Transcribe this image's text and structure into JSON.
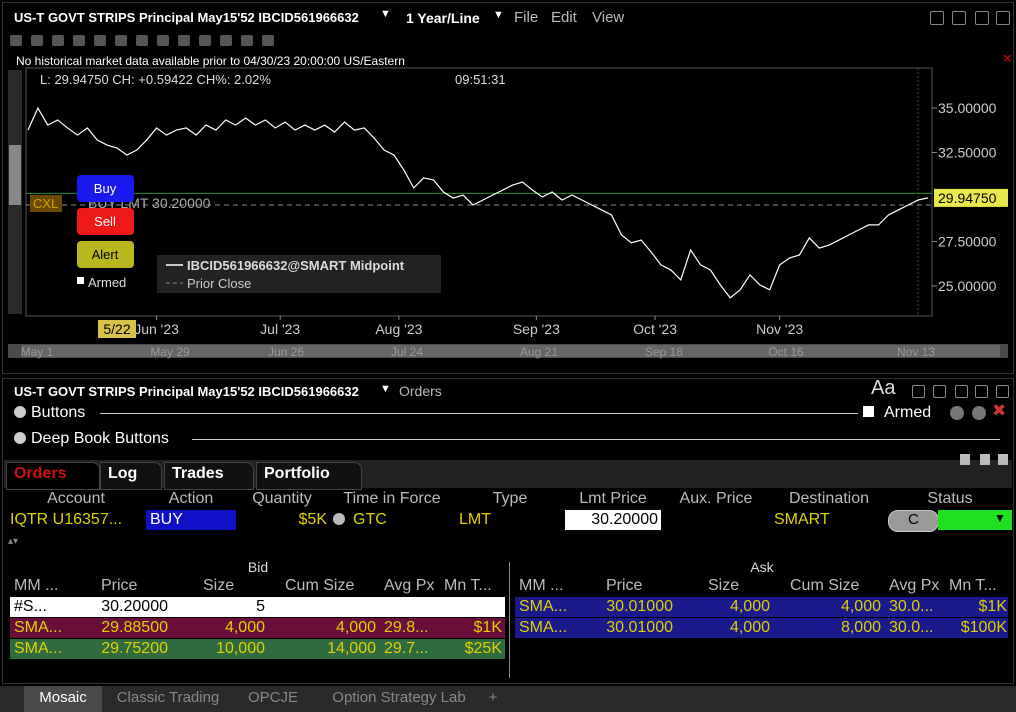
{
  "chart_window": {
    "title": "US-T GOVT STRIPS Principal May15'52 IBCID561966632",
    "period": "1 Year/Line",
    "menu": [
      "File",
      "Edit",
      "View"
    ],
    "notice": "No historical market data available prior to 04/30/23 20:00:00 US/Eastern",
    "info": "L: 29.94750 CH: +0.59422 CH%: 2.02%",
    "time": "09:51:31",
    "buttons": [
      "Buy",
      "Sell",
      "Alert"
    ],
    "armed": "Armed",
    "cxl": "CXL",
    "navigator": [
      "May 1",
      "May 29",
      "Jun 26",
      "Jul 24",
      "Aug 21",
      "Sep 18",
      "Oct 16",
      "Nov 13"
    ]
  },
  "chart_data": {
    "type": "line",
    "series": [
      {
        "name": "IBCID561966632@SMART Midpoint",
        "color": "#ffffff",
        "values": [
          33.76,
          35.0,
          34.04,
          34.33,
          33.88,
          33.48,
          33.88,
          33.2,
          32.92,
          32.75,
          32.36,
          32.64,
          33.2,
          33.88,
          33.48,
          33.76,
          33.88,
          33.48,
          34.04,
          33.76,
          34.33,
          34.04,
          34.44,
          34.04,
          34.33,
          33.88,
          34.21,
          33.76,
          34.04,
          33.76,
          34.04,
          33.65,
          34.21,
          33.76,
          33.88,
          33.31,
          32.64,
          32.36,
          31.52,
          30.51,
          31.07,
          30.96,
          30.28,
          29.94,
          30.11,
          29.55,
          29.83,
          30.11,
          30.39,
          30.67,
          30.84,
          30.39,
          30.0,
          30.28,
          29.83,
          30.11,
          29.83,
          29.55,
          29.27,
          28.99,
          27.87,
          27.42,
          27.58,
          26.91,
          26.18,
          25.9,
          25.34,
          27.02,
          26.18,
          25.9,
          25.06,
          24.33,
          24.78,
          25.62,
          25.06,
          24.78,
          26.18,
          26.57,
          26.74,
          27.7,
          27.13,
          27.3,
          27.58,
          27.87,
          28.15,
          28.43,
          28.43,
          28.99,
          29.27,
          29.55,
          29.83,
          29.95
        ]
      }
    ],
    "prior_close": {
      "name": "Prior Close",
      "value": 29.55,
      "color": "#888888"
    },
    "order": {
      "label": "BUY LMT 30.20000",
      "value": 30.2,
      "color": "#2e8b2e"
    },
    "last": {
      "value": 29.9475,
      "label": "29.94750"
    },
    "cursor": {
      "value": 9,
      "label": "5/22"
    },
    "xlim": [
      0,
      91
    ],
    "xticks": [
      {
        "value": 13,
        "label": "Jun '23"
      },
      {
        "value": 25.5,
        "label": "Jul '23"
      },
      {
        "value": 37.5,
        "label": "Aug '23"
      },
      {
        "value": 51.4,
        "label": "Sep '23"
      },
      {
        "value": 63.4,
        "label": "Oct '23"
      },
      {
        "value": 76,
        "label": "Nov '23"
      }
    ],
    "ylim": [
      23.31,
      37.25
    ],
    "yticks": [
      {
        "value": 35,
        "label": "35.00000"
      },
      {
        "value": 32.5,
        "label": "32.50000"
      },
      {
        "value": 27.5,
        "label": "27.50000"
      },
      {
        "value": 25,
        "label": "25.00000"
      }
    ]
  },
  "order_window": {
    "title": "US-T GOVT STRIPS Principal May15'52 IBCID561966632",
    "link": "Orders",
    "font": "Aa",
    "sections": [
      "Buttons",
      "Deep Book Buttons"
    ],
    "armed": "Armed",
    "tabs": [
      "Orders",
      "Log",
      "Trades",
      "Portfolio"
    ],
    "columns": [
      "Account",
      "Action",
      "Quantity",
      "Time in Force",
      "Type",
      "Lmt Price",
      "Aux. Price",
      "Destination",
      "Status"
    ],
    "row": [
      "IQTR U16357...",
      "BUY",
      "$5K",
      "GTC",
      "LMT",
      "30.20000",
      "SMART"
    ],
    "status": "C"
  },
  "depth": {
    "bid": {
      "title": "Bid",
      "columns": [
        "MM ...",
        "Price",
        "Size",
        "Cum Size",
        "Avg Px",
        "Mn T..."
      ],
      "rows": [
        [
          "#S...",
          "30.20000",
          "5"
        ],
        [
          "SMA...",
          "29.88500",
          "4,000",
          "4,000",
          "29.8...",
          "$1K"
        ],
        [
          "SMA...",
          "29.75200",
          "10,000",
          "14,000",
          "29.7...",
          "$25K"
        ]
      ]
    },
    "ask": {
      "title": "Ask",
      "columns": [
        "MM ...",
        "Price",
        "Size",
        "Cum Size",
        "Avg Px",
        "Mn T..."
      ],
      "rows": [
        [
          "SMA...",
          "30.01000",
          "4,000",
          "4,000",
          "30.0...",
          "$1K"
        ],
        [
          "SMA...",
          "30.01000",
          "4,000",
          "8,000",
          "30.0...",
          "$100K"
        ]
      ]
    }
  },
  "workspace_tabs": [
    "Mosaic",
    "Classic Trading",
    "OPCJE",
    "Option Strategy Lab",
    "+"
  ]
}
